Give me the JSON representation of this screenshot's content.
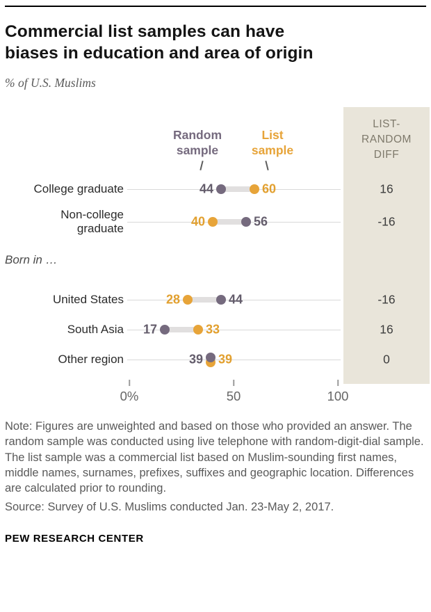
{
  "header": {
    "title_line1": "Commercial list samples can have",
    "title_line2": "biases in education and area of origin",
    "subtitle": "% of U.S. Muslims"
  },
  "chart_data": {
    "type": "dumbbell-dot-plot",
    "title": "Commercial list samples can have biases in education and area of origin",
    "unit_label": "% of U.S. Muslims",
    "series": [
      {
        "name": "Random sample",
        "color": "#756a7e"
      },
      {
        "name": "List sample",
        "color": "#e7a439"
      }
    ],
    "diff_column": {
      "header": "LIST-RANDOM DIFF"
    },
    "rows": [
      {
        "label": "College graduate",
        "random": 44,
        "list": 60,
        "diff": "16"
      },
      {
        "label": "Non-college graduate",
        "random": 56,
        "list": 40,
        "diff": "-16"
      },
      {
        "section": "Born in …"
      },
      {
        "label": "United States",
        "random": 44,
        "list": 28,
        "diff": "-16"
      },
      {
        "label": "South Asia",
        "random": 17,
        "list": 33,
        "diff": "16"
      },
      {
        "label": "Other region",
        "random": 39,
        "list": 39,
        "diff": "0"
      }
    ],
    "x_axis": {
      "min": 0,
      "max": 100,
      "grid": "horizontal-row-lines",
      "ticks": [
        {
          "label": "0%",
          "value": 0
        },
        {
          "label": "50",
          "value": 50
        },
        {
          "label": "100",
          "value": 100
        }
      ]
    },
    "colors": {
      "random": "#756a7e",
      "list": "#e7a439",
      "connector": "#e1dfdf",
      "panel_bg": "#e9e5da"
    },
    "legend_position": "top-inside"
  },
  "footer": {
    "note": "Note: Figures are unweighted and based on those who provided an answer. The random sample was conducted using live telephone with random-digit-dial sample. The list sample was a commercial list based on Muslim-sounding first names, middle names, surnames, prefixes, suffixes and geographic location. Differences are calculated prior to rounding.",
    "source": "Source: Survey of U.S. Muslims conducted Jan. 23-May 2, 2017.",
    "brand": "PEW RESEARCH CENTER"
  }
}
